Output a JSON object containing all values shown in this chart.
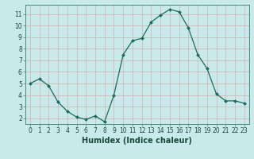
{
  "x": [
    0,
    1,
    2,
    3,
    4,
    5,
    6,
    7,
    8,
    9,
    10,
    11,
    12,
    13,
    14,
    15,
    16,
    17,
    18,
    19,
    20,
    21,
    22,
    23
  ],
  "y": [
    5.0,
    5.4,
    4.8,
    3.4,
    2.6,
    2.1,
    1.9,
    2.2,
    1.7,
    4.0,
    7.5,
    8.7,
    8.9,
    10.3,
    10.9,
    11.4,
    11.2,
    9.8,
    7.5,
    6.3,
    4.1,
    3.5,
    3.5,
    3.3
  ],
  "line_color": "#1a6b5a",
  "marker": "D",
  "marker_size": 2.0,
  "bg_color": "#c8eaea",
  "grid_color": "#d4b8b8",
  "xlabel": "Humidex (Indice chaleur)",
  "ylim": [
    1.5,
    11.8
  ],
  "xlim": [
    -0.5,
    23.5
  ],
  "yticks": [
    2,
    3,
    4,
    5,
    6,
    7,
    8,
    9,
    10,
    11
  ],
  "xticks": [
    0,
    1,
    2,
    3,
    4,
    5,
    6,
    7,
    8,
    9,
    10,
    11,
    12,
    13,
    14,
    15,
    16,
    17,
    18,
    19,
    20,
    21,
    22,
    23
  ],
  "tick_label_fontsize": 5.5,
  "xlabel_fontsize": 7.0,
  "spine_color": "#4a8a7a",
  "tick_color": "#4a8a7a",
  "label_color": "#1a4a3a"
}
